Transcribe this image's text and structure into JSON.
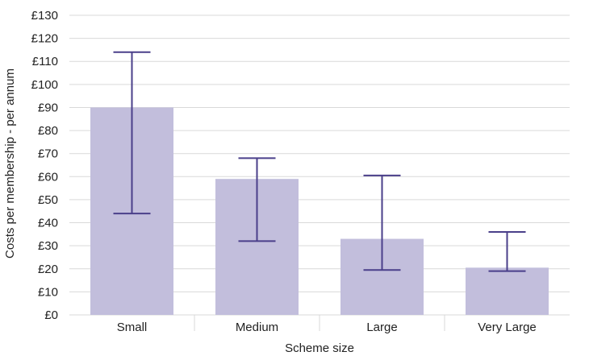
{
  "chart_data": {
    "type": "bar",
    "title": "",
    "xlabel": "Scheme size",
    "ylabel": "Costs per membership - per annum",
    "categories": [
      "Small",
      "Medium",
      "Large",
      "Very Large"
    ],
    "values": [
      90,
      59,
      33,
      20.5
    ],
    "error_low": [
      44,
      32,
      19.5,
      19
    ],
    "error_high": [
      114,
      68,
      60.5,
      36
    ],
    "ylim": [
      0,
      130
    ],
    "yticks": [
      0,
      10,
      20,
      30,
      40,
      50,
      60,
      70,
      80,
      90,
      100,
      110,
      120,
      130
    ],
    "ytick_labels": [
      "£0",
      "£10",
      "£20",
      "£30",
      "£40",
      "£50",
      "£60",
      "£70",
      "£80",
      "£90",
      "£100",
      "£110",
      "£120",
      "£130"
    ],
    "grid": true,
    "legend": "none",
    "colors": {
      "bar": "#c2bedc",
      "error_bar": "#4a3f8a",
      "grid": "#d9d9d9"
    }
  }
}
